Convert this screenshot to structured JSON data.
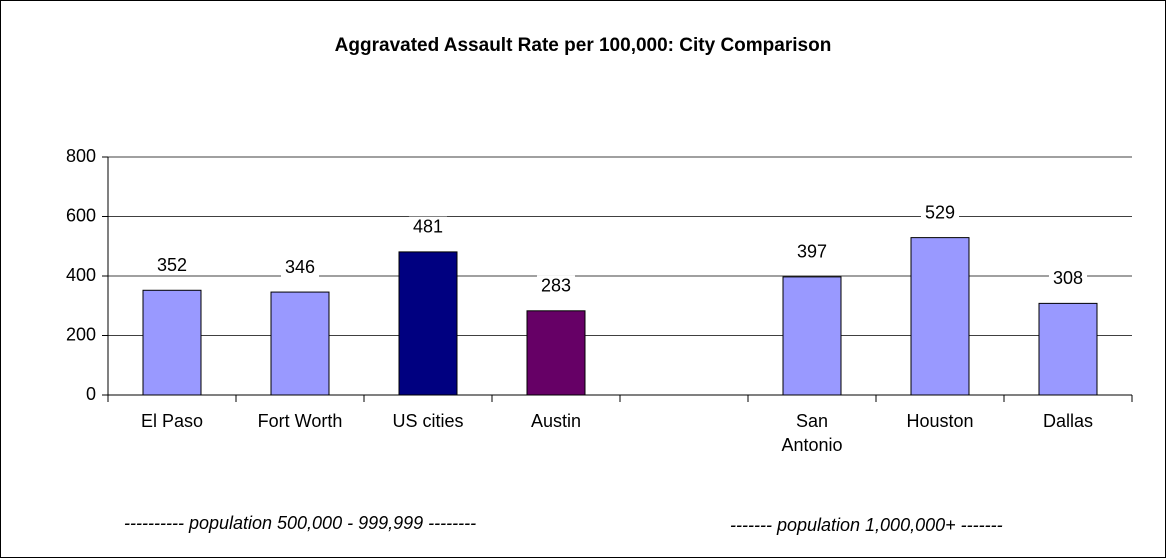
{
  "chart_data": {
    "type": "bar",
    "title": "Aggravated Assault Rate per 100,000: City Comparison",
    "categories": [
      "El Paso",
      "Fort Worth",
      "US cities",
      "Austin",
      null,
      "San\nAntonio",
      "Houston",
      "Dallas"
    ],
    "values": [
      352,
      346,
      481,
      283,
      null,
      397,
      529,
      308
    ],
    "colors": [
      "#9999ff",
      "#9999ff",
      "#000080",
      "#660066",
      null,
      "#9999ff",
      "#9999ff",
      "#9999ff"
    ],
    "ylim": [
      0,
      800
    ],
    "yticks": [
      0,
      200,
      400,
      600,
      800
    ],
    "grid": true,
    "annotations": [
      "---------- population 500,000 - 999,999 --------",
      "------- population 1,000,000+ -------"
    ]
  }
}
